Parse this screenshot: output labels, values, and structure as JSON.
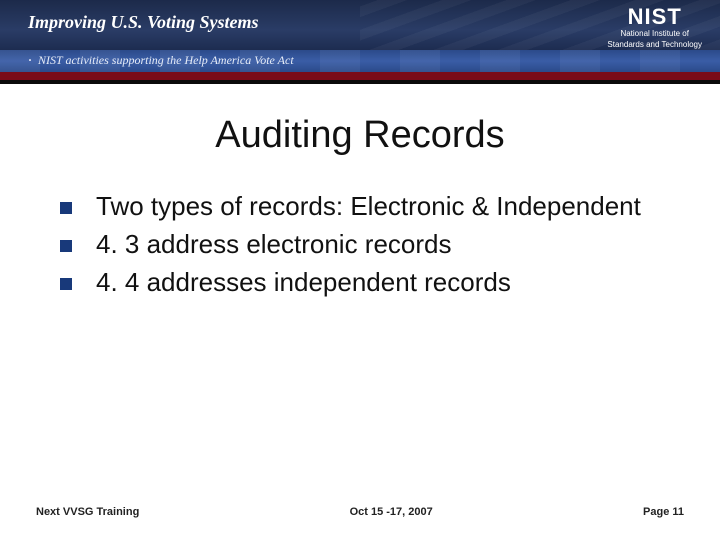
{
  "banner": {
    "title": "Improving U.S. Voting Systems",
    "subtitle": "NIST activities supporting the Help America Vote Act",
    "logo_text": "NIST",
    "logo_sub1": "National Institute of",
    "logo_sub2": "Standards and Technology",
    "colors": {
      "top_bg_dark": "#1c2a4a",
      "mid_bg": "#2b4a8a",
      "red_bar": "#7a0b18",
      "black_bar": "#0a0a0a"
    }
  },
  "title": "Auditing Records",
  "bullets": [
    "Two types of records:  Electronic & Independent",
    "4. 3 address electronic records",
    "4. 4 addresses independent records"
  ],
  "footer": {
    "left": "Next VVSG Training",
    "center": "Oct 15 -17, 2007",
    "right": "Page 11"
  },
  "style": {
    "title_fontsize": 38,
    "body_fontsize": 26,
    "footer_fontsize": 11,
    "bullet_color": "#18397a",
    "text_color": "#111111",
    "background": "#ffffff"
  }
}
